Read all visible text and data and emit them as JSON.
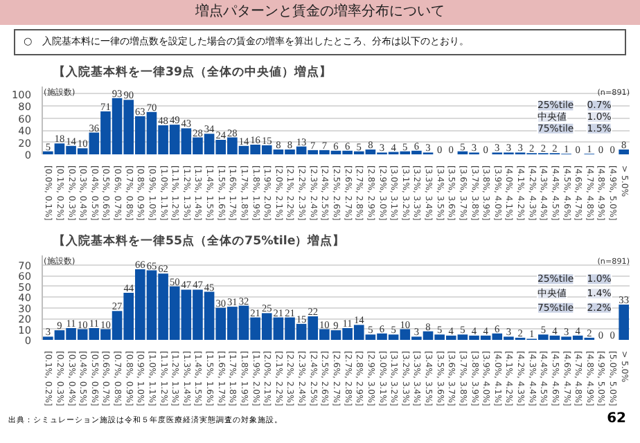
{
  "chart_data": [
    {
      "type": "bar",
      "title": "【入院基本料を一律39点（全体の中央値）増点】",
      "ylabel": "(施設数)",
      "categories": [
        "[0.0%, 0.1%]",
        "[0.1%, 0.2%]",
        "[0.2%, 0.3%]",
        "[0.3%, 0.4%]",
        "[0.4%, 0.5%]",
        "[0.5%, 0.6%]",
        "[0.6%, 0.7%]",
        "[0.7%, 0.8%]",
        "[0.8%, 0.9%]",
        "[0.9%, 1.0%]",
        "[1.0%, 1.1%]",
        "[1.1%, 1.2%]",
        "[1.2%, 1.3%]",
        "[1.3%, 1.4%]",
        "[1.4%, 1.5%]",
        "[1.5%, 1.6%]",
        "[1.6%, 1.7%]",
        "[1.7%, 1.8%]",
        "[1.8%, 1.9%]",
        "[1.9%, 2.0%]",
        "[2.0%, 2.1%]",
        "[2.1%, 2.2%]",
        "[2.2%, 2.3%]",
        "[2.3%, 2.4%]",
        "[2.4%, 2.5%]",
        "[2.5%, 2.6%]",
        "[2.6%, 2.7%]",
        "[2.7%, 2.8%]",
        "[2.8%, 2.9%]",
        "[2.9%, 3.0%]",
        "[3.0%, 3.1%]",
        "[3.1%, 3.2%]",
        "[3.2%, 3.3%]",
        "[3.3%, 3.4%]",
        "[3.4%, 3.5%]",
        "[3.5%, 3.6%]",
        "[3.6%, 3.7%]",
        "[3.7%, 3.8%]",
        "[3.8%, 3.9%]",
        "[3.9%, 4.0%]",
        "[4.0%, 4.1%]",
        "[4.1%, 4.2%]",
        "[4.2%, 4.3%]",
        "[4.3%, 4.4%]",
        "[4.4%, 4.5%]",
        "[4.5%, 4.6%]",
        "[4.6%, 4.7%]",
        "[4.7%, 4.8%]",
        "[4.8%, 4.9%]",
        "[4.9%, 5.0%]",
        "> 5.0%"
      ],
      "values": [
        5,
        18,
        14,
        10,
        36,
        71,
        93,
        90,
        63,
        70,
        48,
        49,
        43,
        28,
        34,
        24,
        28,
        14,
        16,
        15,
        8,
        8,
        13,
        7,
        7,
        6,
        6,
        5,
        8,
        3,
        4,
        5,
        6,
        3,
        0,
        0,
        5,
        3,
        0,
        3,
        3,
        3,
        2,
        2,
        2,
        1,
        0,
        1,
        0,
        0,
        8
      ],
      "color": "#0b52a8",
      "ylim": [
        0,
        112
      ],
      "yticks": [
        0,
        20,
        40,
        60,
        80,
        100
      ],
      "grid": "y",
      "data_labels": true,
      "annotations": [
        "増点パターンと賃金の増率分布について",
        "○　入院基本料に一律の増点数を設定した場合の賃金の増率を算出したところ、分布は以下のとおり。",
        "(n=891)",
        "25%tile",
        "0.7%",
        "中央値",
        "1.0%",
        "75%tile",
        "1.5%"
      ]
    },
    {
      "type": "bar",
      "title": "【入院基本料を一律55点（全体の75%tile）増点】",
      "ylabel": "(施設数)",
      "categories": [
        "[0.1%, 0.2%]",
        "[0.2%, 0.3%]",
        "[0.3%, 0.4%]",
        "[0.4%, 0.5%]",
        "[0.5%, 0.6%]",
        "[0.6%, 0.7%]",
        "[0.7%, 0.8%]",
        "[0.8%, 0.9%]",
        "[0.9%, 1.0%]",
        "[1.0%, 1.1%]",
        "[1.1%, 1.2%]",
        "[1.2%, 1.3%]",
        "[1.3%, 1.4%]",
        "[1.4%, 1.5%]",
        "[1.5%, 1.6%]",
        "[1.6%, 1.7%]",
        "[1.7%, 1.8%]",
        "[1.8%, 1.9%]",
        "[1.9%, 2.0%]",
        "[2.0%, 2.1%]",
        "[2.1%, 2.2%]",
        "[2.2%, 2.3%]",
        "[2.3%, 2.4%]",
        "[2.4%, 2.5%]",
        "[2.5%, 2.6%]",
        "[2.6%, 2.7%]",
        "[2.7%, 2.8%]",
        "[2.8%, 2.9%]",
        "[2.9%, 3.0%]",
        "[3.0%, 3.1%]",
        "[3.1%, 3.2%]",
        "[3.2%, 3.3%]",
        "[3.3%, 3.4%]",
        "[3.4%, 3.5%]",
        "[3.5%, 3.6%]",
        "[3.6%, 3.7%]",
        "[3.7%, 3.8%]",
        "[3.8%, 3.9%]",
        "[3.9%, 4.0%]",
        "[4.0%, 4.1%]",
        "[4.1%, 4.2%]",
        "[4.2%, 4.3%]",
        "[4.3%, 4.4%]",
        "[4.4%, 4.5%]",
        "[4.5%, 4.6%]",
        "[4.6%, 4.7%]",
        "[4.7%, 4.8%]",
        "[4.8%, 4.9%]",
        "[4.9%, 5.0%]",
        "[5.0%, 5.0%]",
        "> 5.0%"
      ],
      "values": [
        3,
        9,
        11,
        10,
        11,
        10,
        27,
        44,
        66,
        65,
        62,
        50,
        47,
        47,
        45,
        30,
        31,
        32,
        21,
        25,
        21,
        21,
        15,
        22,
        10,
        9,
        11,
        14,
        5,
        6,
        5,
        10,
        3,
        8,
        5,
        4,
        5,
        4,
        4,
        6,
        3,
        2,
        1,
        5,
        4,
        3,
        4,
        2,
        0,
        0,
        33
      ],
      "color": "#0b52a8",
      "ylim": [
        0,
        79
      ],
      "yticks": [
        0,
        10,
        20,
        30,
        40,
        50,
        60,
        70
      ],
      "grid": "y",
      "data_labels": true,
      "annotations": [
        "(n=891)",
        "25%tile",
        "1.0%",
        "中央値",
        "1.4%",
        "75%tile",
        "2.2%",
        "出典：シミュレーション施設は令和５年度医療経済実態調査の対象施設。",
        "62"
      ]
    }
  ]
}
